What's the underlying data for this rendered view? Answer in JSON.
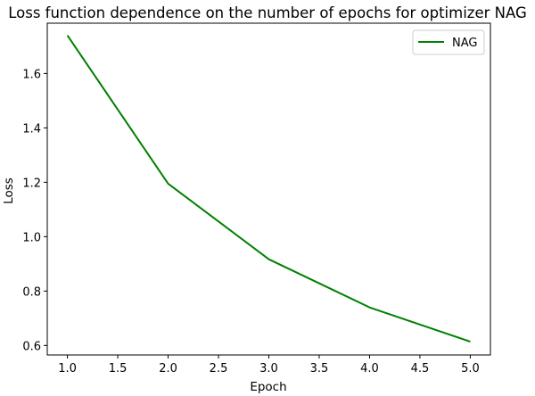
{
  "chart_data": {
    "type": "line",
    "title": "Loss function dependence on the number of epochs for optimizer NAG",
    "xlabel": "Epoch",
    "ylabel": "Loss",
    "xlim": [
      0.8,
      5.2
    ],
    "ylim": [
      0.565,
      1.785
    ],
    "xticks": [
      1.0,
      1.5,
      2.0,
      2.5,
      3.0,
      3.5,
      4.0,
      4.5,
      5.0
    ],
    "yticks": [
      0.6,
      0.8,
      1.0,
      1.2,
      1.4,
      1.6
    ],
    "xtick_labels": [
      "1.0",
      "1.5",
      "2.0",
      "2.5",
      "3.0",
      "3.5",
      "4.0",
      "4.5",
      "5.0"
    ],
    "ytick_labels": [
      "0.6",
      "0.8",
      "1.0",
      "1.2",
      "1.4",
      "1.6"
    ],
    "grid": false,
    "legend_position": "top-right",
    "series": [
      {
        "name": "NAG",
        "color": "#008000",
        "x": [
          1,
          2,
          3,
          4,
          5
        ],
        "y": [
          1.74,
          1.195,
          0.917,
          0.74,
          0.614
        ]
      }
    ]
  }
}
